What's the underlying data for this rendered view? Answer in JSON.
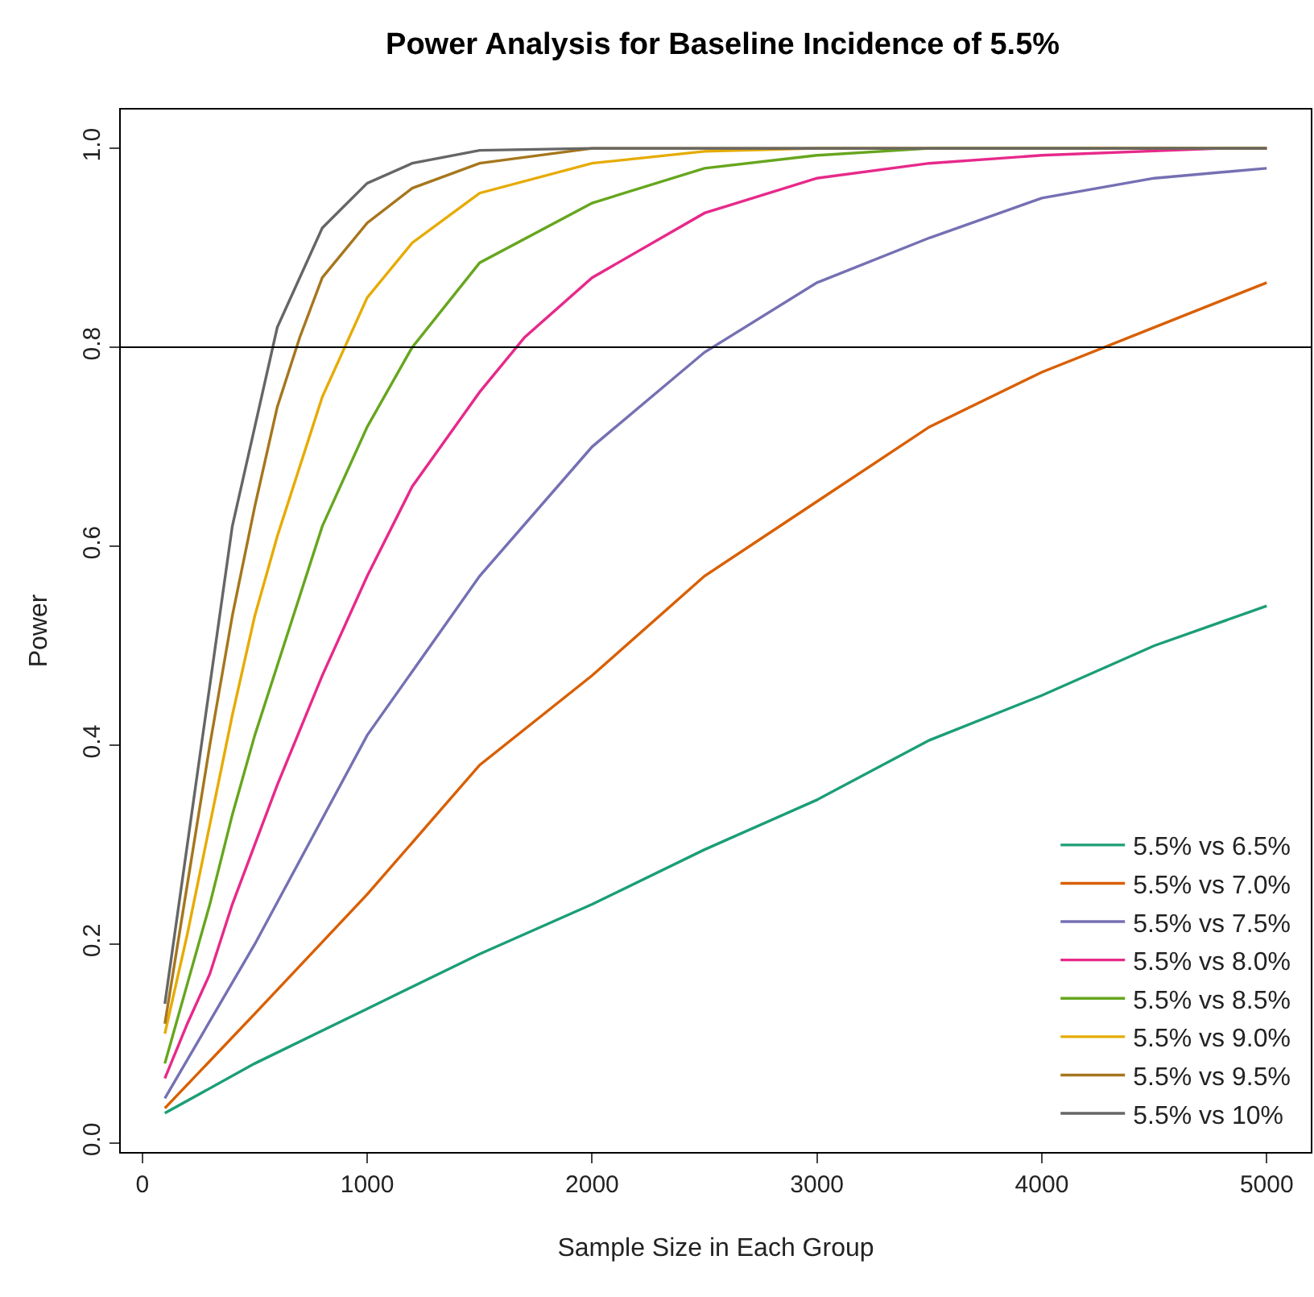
{
  "chart_data": {
    "type": "line",
    "title": "Power Analysis for Baseline Incidence of 5.5%",
    "xlabel": "Sample Size in Each Group",
    "ylabel": "Power",
    "xlim": [
      -96,
      5196
    ],
    "xticks": [
      0,
      1000,
      2000,
      3000,
      4000,
      5000
    ],
    "ylim": [
      -0.009,
      1.039
    ],
    "yticks": [
      {
        "value": 0,
        "label": "0.0"
      },
      0.2,
      0.4,
      0.6,
      0.8,
      {
        "value": 1,
        "label": "1.0"
      }
    ],
    "legend": "bottom right",
    "marker": "none",
    "line_style": "solid",
    "ref_lines": [
      {
        "axis": "y",
        "value": 0.8,
        "color": "#000000"
      }
    ],
    "series": [
      {
        "name": "5.5% vs 6.5%",
        "color": "#1b9e77",
        "x": [
          100,
          500,
          1000,
          1500,
          2000,
          2500,
          3000,
          3500,
          4000,
          4500,
          5000
        ],
        "values": [
          0.03,
          0.08,
          0.135,
          0.19,
          0.24,
          0.295,
          0.345,
          0.405,
          0.45,
          0.5,
          0.54
        ]
      },
      {
        "name": "5.5% vs 7.0%",
        "color": "#d95f02",
        "x": [
          100,
          500,
          1000,
          1500,
          2000,
          2500,
          3000,
          3500,
          4000,
          4500,
          5000
        ],
        "values": [
          0.035,
          0.13,
          0.25,
          0.38,
          0.47,
          0.57,
          0.645,
          0.72,
          0.775,
          0.82,
          0.865
        ]
      },
      {
        "name": "5.5% vs 7.5%",
        "color": "#7570b3",
        "x": [
          100,
          500,
          1000,
          1500,
          2000,
          2500,
          3000,
          3500,
          4000,
          4500,
          5000
        ],
        "values": [
          0.045,
          0.2,
          0.41,
          0.57,
          0.7,
          0.795,
          0.865,
          0.91,
          0.95,
          0.97,
          0.98
        ]
      },
      {
        "name": "5.5% vs 8.0%",
        "color": "#e7298a",
        "x": [
          100,
          200,
          300,
          400,
          500,
          600,
          800,
          1000,
          1200,
          1500,
          1700,
          2000,
          2500,
          3000,
          3500,
          4000,
          4800,
          5000
        ],
        "values": [
          0.065,
          0.12,
          0.17,
          0.24,
          0.3,
          0.36,
          0.47,
          0.57,
          0.66,
          0.755,
          0.81,
          0.87,
          0.935,
          0.97,
          0.985,
          0.993,
          1.0,
          1.0
        ]
      },
      {
        "name": "5.5% vs 8.5%",
        "color": "#66a61e",
        "x": [
          100,
          200,
          300,
          400,
          500,
          600,
          800,
          1000,
          1200,
          1500,
          2000,
          2500,
          3000,
          3500,
          5000
        ],
        "values": [
          0.08,
          0.16,
          0.24,
          0.33,
          0.41,
          0.48,
          0.62,
          0.72,
          0.8,
          0.885,
          0.945,
          0.98,
          0.993,
          1.0,
          1.0
        ]
      },
      {
        "name": "5.5% vs 9.0%",
        "color": "#e6ab02",
        "x": [
          100,
          200,
          300,
          400,
          500,
          600,
          800,
          1000,
          1200,
          1500,
          2000,
          2500,
          3000,
          5000
        ],
        "values": [
          0.11,
          0.21,
          0.32,
          0.43,
          0.53,
          0.61,
          0.75,
          0.85,
          0.905,
          0.955,
          0.985,
          0.997,
          1.0,
          1.0
        ]
      },
      {
        "name": "5.5% vs 9.5%",
        "color": "#a6761d",
        "x": [
          100,
          200,
          300,
          400,
          500,
          600,
          700,
          800,
          1000,
          1200,
          1500,
          2000,
          5000
        ],
        "values": [
          0.12,
          0.26,
          0.4,
          0.53,
          0.64,
          0.74,
          0.81,
          0.87,
          0.925,
          0.96,
          0.985,
          1.0,
          1.0
        ]
      },
      {
        "name": "5.5% vs 10%",
        "color": "#666666",
        "x": [
          100,
          200,
          300,
          400,
          500,
          600,
          800,
          1000,
          1200,
          1500,
          2000,
          5000
        ],
        "values": [
          0.14,
          0.3,
          0.46,
          0.62,
          0.72,
          0.82,
          0.92,
          0.965,
          0.985,
          0.998,
          1.0,
          1.0
        ]
      }
    ]
  }
}
